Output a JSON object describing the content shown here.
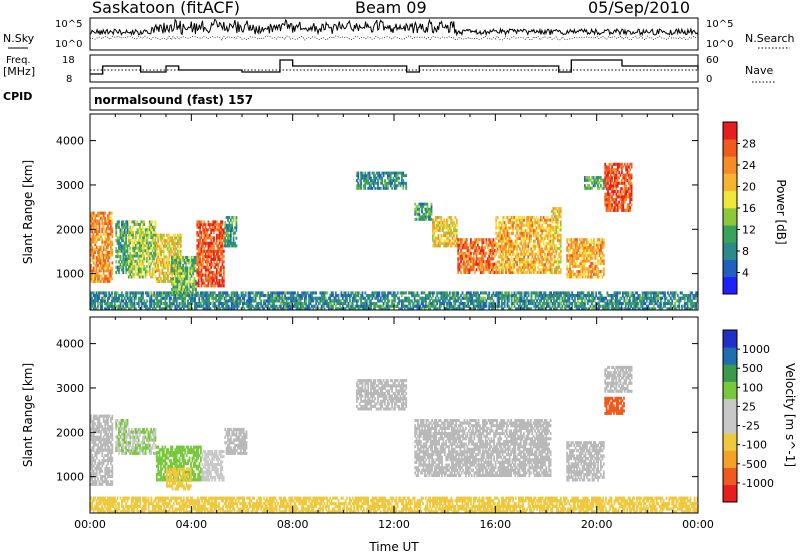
{
  "header": {
    "station": "Saskatoon (fitACF)",
    "beam": "Beam 09",
    "date": "05/Sep/2010"
  },
  "noise_panel": {
    "left_label": "N.Sky",
    "right_label": "N.Search",
    "left_ticks": [
      "10^5",
      "10^0"
    ],
    "right_ticks": [
      "10^5",
      "10^0"
    ]
  },
  "freq_panel": {
    "left_label_1": "Freq.",
    "left_label_2": "[MHz]",
    "right_label": "Nave",
    "left_ticks": [
      "18",
      "8"
    ],
    "right_ticks": [
      "60",
      "0"
    ]
  },
  "cpid": {
    "label": "CPID",
    "program": "normalsound (fast) 157"
  },
  "colors": {
    "power_scale": [
      "#2020ff",
      "#1f5fbf",
      "#2d8a8a",
      "#3aa35a",
      "#8cc83c",
      "#f0e63c",
      "#f5b432",
      "#f58c28",
      "#f05a1e",
      "#e61e1e"
    ],
    "velocity_scale": [
      "#e61e1e",
      "#f05a1e",
      "#f5a028",
      "#f0c83c",
      "#c8c8c8",
      "#c8c8c8",
      "#78c83c",
      "#3a9a4a",
      "#1f6fb0",
      "#2030c8"
    ],
    "ground_scatter": "#b9b9b9"
  },
  "chart_data": [
    {
      "type": "heatmap",
      "name_hint": "power",
      "ylabel": "Slant Range [km]",
      "yticks": [
        1000,
        2000,
        3000,
        4000
      ],
      "ylim": [
        180,
        4600
      ],
      "xlim": [
        0,
        24
      ],
      "colorbar_label": "Power [dB]",
      "colorbar_ticks": [
        4,
        8,
        12,
        16,
        20,
        24,
        28
      ],
      "colorbar_range": [
        0,
        30
      ],
      "regions": [
        {
          "t": [
            0.0,
            0.9
          ],
          "r": [
            800,
            2400
          ],
          "v": 22
        },
        {
          "t": [
            1.0,
            1.5
          ],
          "r": [
            1000,
            2200
          ],
          "v": 10
        },
        {
          "t": [
            1.5,
            2.6
          ],
          "r": [
            900,
            2200
          ],
          "v": 14
        },
        {
          "t": [
            2.6,
            3.6
          ],
          "r": [
            800,
            1900
          ],
          "v": 18
        },
        {
          "t": [
            3.2,
            4.2
          ],
          "r": [
            500,
            1400
          ],
          "v": 12
        },
        {
          "t": [
            4.2,
            5.3
          ],
          "r": [
            700,
            2200
          ],
          "v": 26
        },
        {
          "t": [
            5.3,
            5.8
          ],
          "r": [
            1600,
            2300
          ],
          "v": 10
        },
        {
          "t": [
            10.5,
            12.5
          ],
          "r": [
            2900,
            3300
          ],
          "v": 8
        },
        {
          "t": [
            12.8,
            13.5
          ],
          "r": [
            2200,
            2600
          ],
          "v": 10
        },
        {
          "t": [
            13.5,
            14.5
          ],
          "r": [
            1600,
            2300
          ],
          "v": 18
        },
        {
          "t": [
            14.5,
            16.0
          ],
          "r": [
            1000,
            1800
          ],
          "v": 24
        },
        {
          "t": [
            16.0,
            18.2
          ],
          "r": [
            1000,
            2300
          ],
          "v": 20
        },
        {
          "t": [
            18.2,
            18.6
          ],
          "r": [
            1000,
            2500
          ],
          "v": 18
        },
        {
          "t": [
            18.8,
            20.3
          ],
          "r": [
            900,
            1800
          ],
          "v": 20
        },
        {
          "t": [
            20.3,
            21.4
          ],
          "r": [
            2400,
            3500
          ],
          "v": 26
        },
        {
          "t": [
            19.5,
            20.3
          ],
          "r": [
            2900,
            3200
          ],
          "v": 10
        },
        {
          "t": [
            0.0,
            24.0
          ],
          "r": [
            180,
            600
          ],
          "v": 8
        }
      ]
    },
    {
      "type": "heatmap",
      "name_hint": "velocity",
      "ylabel": "Slant Range [km]",
      "xlabel": "Time UT",
      "yticks": [
        1000,
        2000,
        3000,
        4000
      ],
      "xticks": [
        "00:00",
        "04:00",
        "08:00",
        "12:00",
        "16:00",
        "20:00",
        "00:00"
      ],
      "ylim": [
        180,
        4600
      ],
      "xlim": [
        0,
        24
      ],
      "colorbar_label": "Velocity [m s^-1]",
      "colorbar_ticks": [
        1000,
        500,
        100,
        25,
        -25,
        -100,
        -500,
        -1000
      ],
      "regions": [
        {
          "t": [
            0.0,
            0.9
          ],
          "r": [
            800,
            2400
          ],
          "v": 0
        },
        {
          "t": [
            1.0,
            1.5
          ],
          "r": [
            1500,
            2300
          ],
          "v": 100
        },
        {
          "t": [
            1.5,
            2.6
          ],
          "r": [
            1500,
            2100
          ],
          "v": 100
        },
        {
          "t": [
            2.6,
            4.4
          ],
          "r": [
            900,
            1700
          ],
          "v": 200
        },
        {
          "t": [
            3.0,
            4.0
          ],
          "r": [
            700,
            1200
          ],
          "v": -60
        },
        {
          "t": [
            4.4,
            5.3
          ],
          "r": [
            900,
            1600
          ],
          "v": 50
        },
        {
          "t": [
            5.3,
            6.2
          ],
          "r": [
            1500,
            2100
          ],
          "v": 0
        },
        {
          "t": [
            10.5,
            12.5
          ],
          "r": [
            2500,
            3200
          ],
          "v": 0
        },
        {
          "t": [
            12.8,
            18.2
          ],
          "r": [
            1000,
            2300
          ],
          "v": 0
        },
        {
          "t": [
            18.8,
            20.3
          ],
          "r": [
            900,
            1800
          ],
          "v": 0
        },
        {
          "t": [
            20.3,
            21.4
          ],
          "r": [
            2900,
            3500
          ],
          "v": 0
        },
        {
          "t": [
            20.3,
            21.1
          ],
          "r": [
            2400,
            2800
          ],
          "v": -800
        },
        {
          "t": [
            0.0,
            24.0
          ],
          "r": [
            180,
            550
          ],
          "v": -60
        }
      ]
    }
  ]
}
